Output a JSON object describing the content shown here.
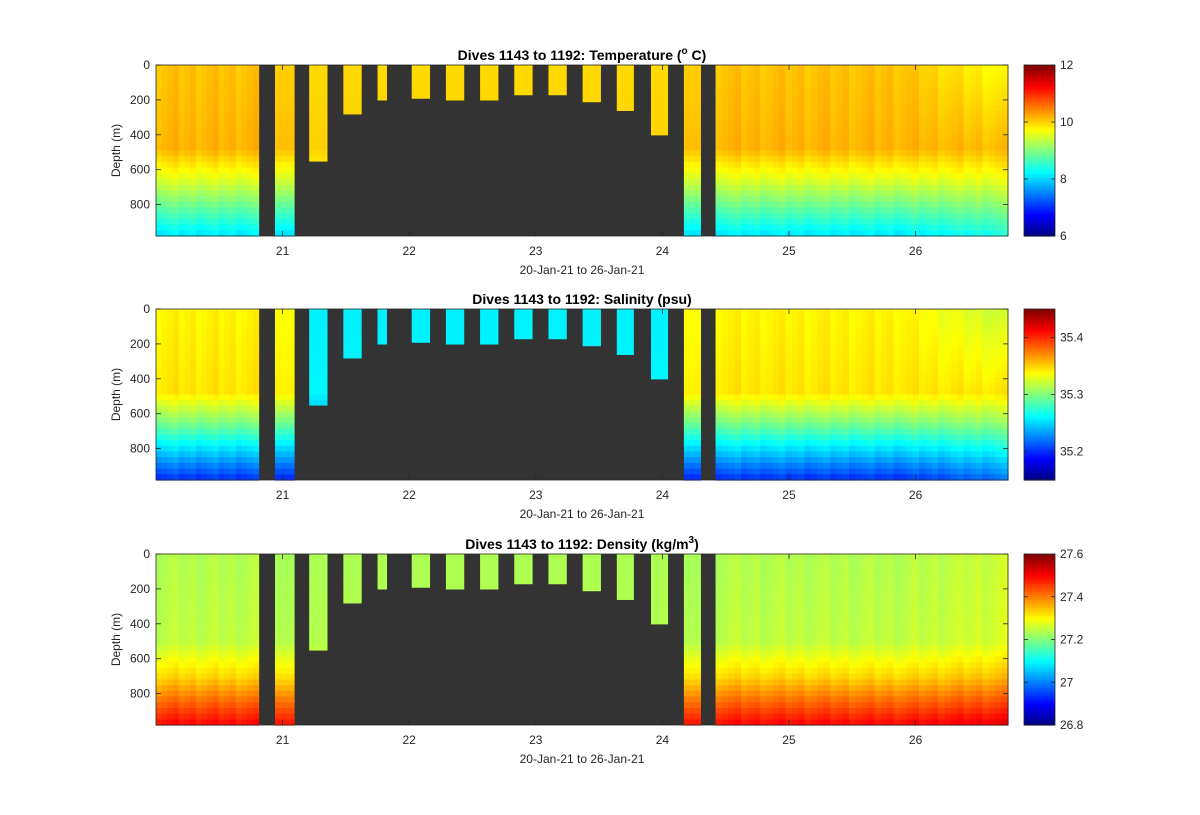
{
  "figure_background": "#ffffff",
  "gap_color": "#333333",
  "chart_data": [
    {
      "type": "heatmap",
      "title_prefix": "Dives 1143 to 1192: Temperature (",
      "title_sup": "o",
      "title_suffix": " C)",
      "xlabel": "20-Jan-21 to 26-Jan-21",
      "ylabel": "Depth (m)",
      "xlim": [
        20.0,
        26.73
      ],
      "ylim": [
        980,
        0
      ],
      "xticks": [
        21,
        22,
        23,
        24,
        25,
        26
      ],
      "yticks": [
        0,
        200,
        400,
        600,
        800
      ],
      "colorbar": {
        "colormap": "jet",
        "range": [
          6,
          12
        ],
        "ticks": [
          6,
          8,
          10,
          12
        ]
      },
      "profile": {
        "surface": 10.1,
        "upper": 10.2,
        "upper_depth": 480,
        "mid": 9.6,
        "mid_depth": 650,
        "deep": 8.1,
        "deep_depth": 980
      },
      "right_trend": {
        "start_day": 25.9,
        "end_day": 26.73,
        "surface_delta": -0.4,
        "deep_delta": 0.3
      },
      "shallow_value": 10.0
    },
    {
      "type": "heatmap",
      "title_prefix": "Dives 1143 to 1192: Salinity (psu)",
      "title_sup": "",
      "title_suffix": "",
      "xlabel": "20-Jan-21 to 26-Jan-21",
      "ylabel": "Depth (m)",
      "xlim": [
        20.0,
        26.73
      ],
      "ylim": [
        980,
        0
      ],
      "xticks": [
        21,
        22,
        23,
        24,
        25,
        26
      ],
      "yticks": [
        0,
        200,
        400,
        600,
        800
      ],
      "colorbar": {
        "colormap": "jet",
        "range": [
          35.15,
          35.45
        ],
        "ticks": [
          35.2,
          35.3,
          35.4
        ]
      },
      "profile": {
        "surface": 35.34,
        "upper": 35.345,
        "upper_depth": 480,
        "mid": 35.3,
        "mid_depth": 650,
        "deep": 35.2,
        "deep_depth": 980
      },
      "right_trend": {
        "start_day": 25.9,
        "end_day": 26.73,
        "surface_delta": -0.02,
        "deep_delta": 0.02
      },
      "shallow_value": 35.26
    },
    {
      "type": "heatmap",
      "title_prefix": "Dives 1143 to 1192: Density (kg/m",
      "title_sup": "3",
      "title_suffix": ")",
      "xlabel": "20-Jan-21 to 26-Jan-21",
      "ylabel": "Depth (m)",
      "xlim": [
        20.0,
        26.73
      ],
      "ylim": [
        980,
        0
      ],
      "xticks": [
        21,
        22,
        23,
        24,
        25,
        26
      ],
      "yticks": [
        0,
        200,
        400,
        600,
        800
      ],
      "colorbar": {
        "colormap": "jet",
        "range": [
          26.8,
          27.6
        ],
        "ticks": [
          26.8,
          27,
          27.2,
          27.4,
          27.6
        ]
      },
      "profile": {
        "surface": 27.24,
        "upper": 27.25,
        "upper_depth": 500,
        "mid": 27.33,
        "mid_depth": 700,
        "deep": 27.5,
        "deep_depth": 980
      },
      "right_trend": {
        "start_day": 25.9,
        "end_day": 26.73,
        "surface_delta": 0.02,
        "deep_delta": 0.02
      },
      "shallow_value": 27.24
    }
  ],
  "dives": {
    "full_left": {
      "start_day": 20.0,
      "end_day": 20.81
    },
    "full_right": {
      "start_day": 24.42,
      "end_day": 26.73
    },
    "columns": [
      {
        "start_day": 20.94,
        "end_day": 21.09,
        "max_depth": 980
      },
      {
        "start_day": 21.21,
        "end_day": 21.35,
        "max_depth": 550
      },
      {
        "start_day": 21.48,
        "end_day": 21.62,
        "max_depth": 280
      },
      {
        "start_day": 21.75,
        "end_day": 21.82,
        "max_depth": 200
      },
      {
        "start_day": 22.02,
        "end_day": 22.16,
        "max_depth": 190
      },
      {
        "start_day": 22.29,
        "end_day": 22.43,
        "max_depth": 200
      },
      {
        "start_day": 22.56,
        "end_day": 22.7,
        "max_depth": 200
      },
      {
        "start_day": 22.83,
        "end_day": 22.97,
        "max_depth": 170
      },
      {
        "start_day": 23.1,
        "end_day": 23.24,
        "max_depth": 170
      },
      {
        "start_day": 23.37,
        "end_day": 23.51,
        "max_depth": 210
      },
      {
        "start_day": 23.64,
        "end_day": 23.77,
        "max_depth": 260
      },
      {
        "start_day": 23.91,
        "end_day": 24.04,
        "max_depth": 400
      },
      {
        "start_day": 24.17,
        "end_day": 24.3,
        "max_depth": 980
      }
    ]
  }
}
